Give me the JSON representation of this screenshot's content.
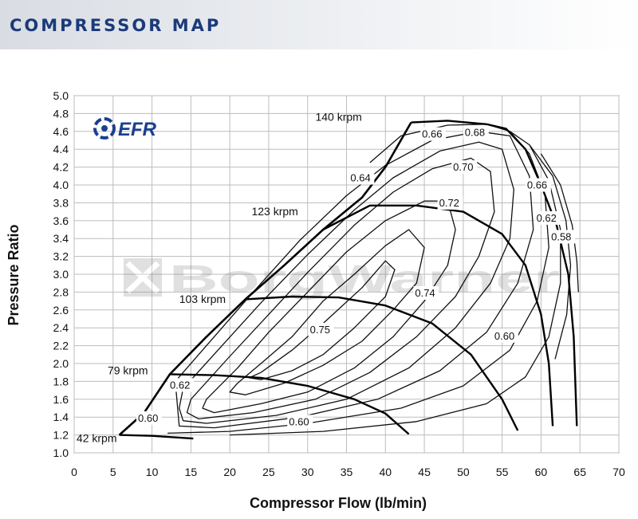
{
  "header": {
    "title": "COMPRESSOR MAP"
  },
  "logo": {
    "text": "EFR",
    "color": "#1b3f8f"
  },
  "watermark": {
    "text": "BorgWarner"
  },
  "chart_data": {
    "type": "line",
    "title": "",
    "xlabel": "Compressor Flow (lb/min)",
    "ylabel": "Pressure Ratio",
    "xlim": [
      0,
      70
    ],
    "ylim": [
      1.0,
      5.0
    ],
    "x_ticks": [
      0,
      5,
      10,
      15,
      20,
      25,
      30,
      35,
      40,
      45,
      50,
      55,
      60,
      65,
      70
    ],
    "y_ticks": [
      "1.0",
      "1.2",
      "1.4",
      "1.6",
      "1.8",
      "2.0",
      "2.2",
      "2.4",
      "2.6",
      "2.8",
      "3.0",
      "3.2",
      "3.4",
      "3.6",
      "3.8",
      "4.0",
      "4.2",
      "4.4",
      "4.6",
      "4.8",
      "5.0"
    ],
    "grid": true,
    "surge_line": [
      [
        5.8,
        1.2
      ],
      [
        9,
        1.45
      ],
      [
        12.3,
        1.88
      ],
      [
        17,
        2.3
      ],
      [
        22,
        2.72
      ],
      [
        27,
        3.1
      ],
      [
        32,
        3.5
      ],
      [
        37,
        3.86
      ],
      [
        40,
        4.2
      ],
      [
        43.3,
        4.7
      ]
    ],
    "speed_lines": [
      {
        "label": "42 krpm",
        "points": [
          [
            5.8,
            1.2
          ],
          [
            10,
            1.19
          ],
          [
            15.3,
            1.16
          ]
        ]
      },
      {
        "label": "79 krpm",
        "points": [
          [
            12.3,
            1.88
          ],
          [
            18,
            1.87
          ],
          [
            24,
            1.84
          ],
          [
            30,
            1.75
          ],
          [
            36,
            1.6
          ],
          [
            40,
            1.44
          ],
          [
            43,
            1.21
          ]
        ]
      },
      {
        "label": "103 krpm",
        "points": [
          [
            22,
            2.72
          ],
          [
            28,
            2.75
          ],
          [
            34,
            2.74
          ],
          [
            40,
            2.65
          ],
          [
            46,
            2.45
          ],
          [
            51,
            2.1
          ],
          [
            55,
            1.6
          ],
          [
            57,
            1.25
          ]
        ]
      },
      {
        "label": "123 krpm",
        "points": [
          [
            32,
            3.5
          ],
          [
            38,
            3.77
          ],
          [
            44,
            3.77
          ],
          [
            50,
            3.7
          ],
          [
            55,
            3.45
          ],
          [
            58,
            3.1
          ],
          [
            60,
            2.55
          ],
          [
            61,
            2.0
          ],
          [
            61.5,
            1.3
          ]
        ]
      },
      {
        "label": "140 krpm",
        "points": [
          [
            43.3,
            4.7
          ],
          [
            48,
            4.72
          ],
          [
            53,
            4.68
          ],
          [
            55.5,
            4.63
          ],
          [
            58,
            4.4
          ],
          [
            60,
            4.0
          ],
          [
            62,
            3.55
          ],
          [
            63.5,
            3.0
          ],
          [
            64.2,
            2.3
          ],
          [
            64.6,
            1.3
          ]
        ]
      }
    ],
    "efficiency_islands": [
      {
        "label": "0.75",
        "points": [
          [
            24,
            1.9
          ],
          [
            28,
            2.15
          ],
          [
            32,
            2.45
          ],
          [
            37,
            2.85
          ],
          [
            40,
            3.15
          ],
          [
            41.2,
            3.05
          ],
          [
            40,
            2.75
          ],
          [
            36,
            2.4
          ],
          [
            32,
            2.1
          ],
          [
            28,
            1.92
          ],
          [
            24,
            1.82
          ],
          [
            22.5,
            1.84
          ],
          [
            24,
            1.9
          ]
        ]
      },
      {
        "label": "0.74",
        "points": [
          [
            21,
            1.78
          ],
          [
            24,
            2.0
          ],
          [
            28,
            2.3
          ],
          [
            32,
            2.7
          ],
          [
            36,
            3.0
          ],
          [
            40,
            3.32
          ],
          [
            43,
            3.5
          ],
          [
            45,
            3.3
          ],
          [
            44,
            2.9
          ],
          [
            41,
            2.6
          ],
          [
            37,
            2.25
          ],
          [
            32,
            1.98
          ],
          [
            27,
            1.78
          ],
          [
            22,
            1.65
          ],
          [
            20,
            1.68
          ],
          [
            21,
            1.78
          ]
        ]
      },
      {
        "label": "0.72",
        "points": [
          [
            17,
            1.6
          ],
          [
            21,
            1.95
          ],
          [
            25,
            2.35
          ],
          [
            30,
            2.8
          ],
          [
            35,
            3.25
          ],
          [
            40,
            3.6
          ],
          [
            45,
            3.82
          ],
          [
            48,
            3.82
          ],
          [
            49,
            3.5
          ],
          [
            48,
            3.1
          ],
          [
            45,
            2.7
          ],
          [
            41,
            2.3
          ],
          [
            36,
            1.95
          ],
          [
            30,
            1.68
          ],
          [
            24,
            1.55
          ],
          [
            18,
            1.45
          ],
          [
            16.5,
            1.5
          ],
          [
            17,
            1.6
          ]
        ]
      },
      {
        "label": "0.70",
        "points": [
          [
            15,
            1.6
          ],
          [
            20,
            2.08
          ],
          [
            25,
            2.55
          ],
          [
            30,
            3.02
          ],
          [
            36,
            3.55
          ],
          [
            41,
            3.92
          ],
          [
            46,
            4.18
          ],
          [
            51,
            4.3
          ],
          [
            53.5,
            4.15
          ],
          [
            54,
            3.7
          ],
          [
            52,
            3.2
          ],
          [
            49,
            2.75
          ],
          [
            44,
            2.3
          ],
          [
            38,
            1.9
          ],
          [
            31,
            1.6
          ],
          [
            23,
            1.45
          ],
          [
            16,
            1.38
          ],
          [
            14.5,
            1.45
          ],
          [
            15,
            1.6
          ]
        ]
      },
      {
        "label": "0.68",
        "points": [
          [
            14,
            1.72
          ],
          [
            19,
            2.2
          ],
          [
            24,
            2.68
          ],
          [
            30,
            3.22
          ],
          [
            36,
            3.72
          ],
          [
            41,
            4.08
          ],
          [
            47,
            4.38
          ],
          [
            52,
            4.48
          ],
          [
            55,
            4.4
          ],
          [
            56.5,
            3.95
          ],
          [
            56,
            3.4
          ],
          [
            53.5,
            2.9
          ],
          [
            49,
            2.4
          ],
          [
            43,
            1.95
          ],
          [
            35,
            1.6
          ],
          [
            26,
            1.42
          ],
          [
            17,
            1.33
          ],
          [
            14,
            1.36
          ],
          [
            13.5,
            1.5
          ],
          [
            14,
            1.72
          ]
        ]
      },
      {
        "label": "0.66",
        "points": [
          [
            13,
            1.8
          ],
          [
            18,
            2.3
          ],
          [
            23,
            2.8
          ],
          [
            29,
            3.38
          ],
          [
            35,
            3.88
          ],
          [
            40,
            4.22
          ],
          [
            46,
            4.5
          ],
          [
            52,
            4.6
          ],
          [
            56,
            4.55
          ],
          [
            58.5,
            4.1
          ],
          [
            59,
            3.5
          ],
          [
            57,
            2.9
          ],
          [
            53,
            2.35
          ],
          [
            47,
            1.92
          ],
          [
            39,
            1.6
          ],
          [
            29,
            1.4
          ],
          [
            18,
            1.28
          ],
          [
            13.5,
            1.3
          ],
          [
            13,
            1.8
          ]
        ]
      },
      {
        "label": "0.64",
        "points": [
          [
            38,
            4.25
          ],
          [
            42,
            4.55
          ],
          [
            48,
            4.67
          ],
          [
            53,
            4.68
          ],
          [
            56,
            4.6
          ],
          [
            58.5,
            4.35
          ],
          [
            60.5,
            3.9
          ],
          [
            61,
            3.3
          ],
          [
            59.5,
            2.7
          ],
          [
            56,
            2.15
          ],
          [
            50,
            1.75
          ],
          [
            42,
            1.5
          ],
          [
            30,
            1.33
          ],
          [
            20,
            1.24
          ],
          [
            12,
            1.22
          ]
        ]
      },
      {
        "label": "0.62",
        "points": [
          [
            56,
            4.6
          ],
          [
            58.5,
            4.45
          ],
          [
            61,
            4.05
          ],
          [
            62.5,
            3.5
          ],
          [
            62.5,
            2.9
          ],
          [
            61,
            2.3
          ],
          [
            58,
            1.85
          ],
          [
            53,
            1.55
          ],
          [
            44,
            1.35
          ],
          [
            32,
            1.24
          ],
          [
            20,
            1.2
          ]
        ]
      },
      {
        "label": "0.60",
        "points": [
          [
            58.5,
            4.45
          ],
          [
            61.5,
            4.1
          ],
          [
            63.2,
            3.6
          ],
          [
            63.8,
            3.1
          ],
          [
            63.3,
            2.55
          ],
          [
            61.8,
            2.05
          ]
        ]
      },
      {
        "label": "0.58",
        "points": [
          [
            60,
            4.35
          ],
          [
            62.5,
            4.0
          ],
          [
            64,
            3.55
          ],
          [
            64.6,
            3.15
          ],
          [
            64.8,
            2.8
          ]
        ]
      }
    ],
    "labels": [
      {
        "text": "140 krpm",
        "x": 31.0,
        "y": 4.72,
        "kind": "speed"
      },
      {
        "text": "123 krpm",
        "x": 22.8,
        "y": 3.66,
        "kind": "speed"
      },
      {
        "text": "103 krpm",
        "x": 13.5,
        "y": 2.68,
        "kind": "speed"
      },
      {
        "text": "79 krpm",
        "x": 4.3,
        "y": 1.88,
        "kind": "speed"
      },
      {
        "text": "42 krpm",
        "x": 0.3,
        "y": 1.12,
        "kind": "speed-small"
      },
      {
        "text": "0.66",
        "x": 44.7,
        "y": 4.53,
        "kind": "eff"
      },
      {
        "text": "0.68",
        "x": 50.2,
        "y": 4.55,
        "kind": "eff"
      },
      {
        "text": "0.70",
        "x": 48.7,
        "y": 4.16,
        "kind": "eff"
      },
      {
        "text": "0.64",
        "x": 35.5,
        "y": 4.04,
        "kind": "eff"
      },
      {
        "text": "0.72",
        "x": 46.9,
        "y": 3.76,
        "kind": "eff"
      },
      {
        "text": "0.66",
        "x": 58.2,
        "y": 3.96,
        "kind": "eff"
      },
      {
        "text": "0.62",
        "x": 59.4,
        "y": 3.59,
        "kind": "eff"
      },
      {
        "text": "0.58",
        "x": 61.3,
        "y": 3.38,
        "kind": "eff"
      },
      {
        "text": "0.74",
        "x": 43.8,
        "y": 2.75,
        "kind": "eff"
      },
      {
        "text": "0.75",
        "x": 30.3,
        "y": 2.34,
        "kind": "eff"
      },
      {
        "text": "0.60",
        "x": 54.0,
        "y": 2.27,
        "kind": "eff"
      },
      {
        "text": "0.62",
        "x": 12.3,
        "y": 1.72,
        "kind": "eff"
      },
      {
        "text": "0.60",
        "x": 8.2,
        "y": 1.35,
        "kind": "eff"
      },
      {
        "text": "0.60",
        "x": 27.6,
        "y": 1.31,
        "kind": "eff"
      }
    ]
  }
}
